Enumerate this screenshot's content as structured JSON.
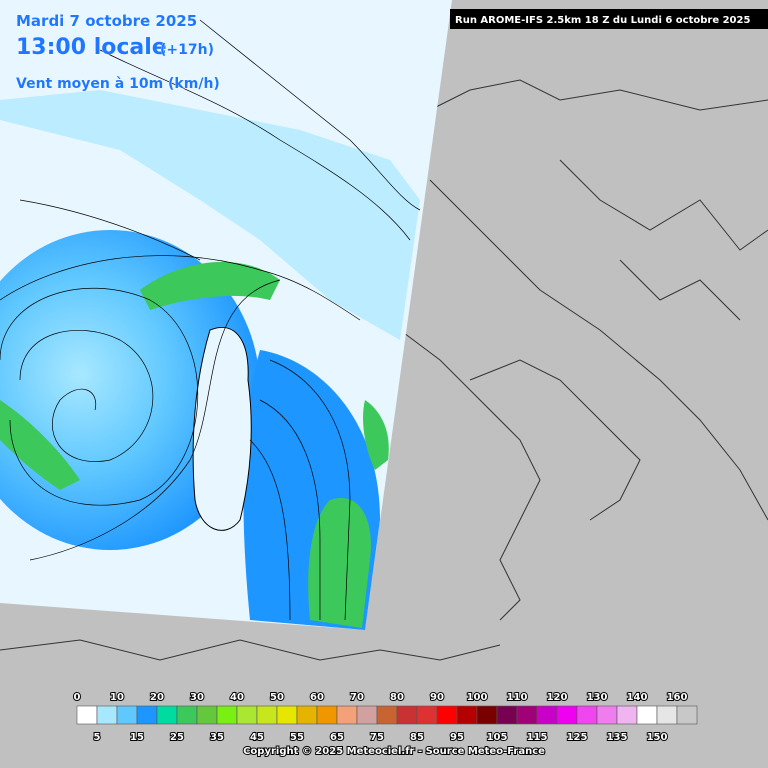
{
  "header": {
    "date": "Mardi 7 octobre 2025",
    "time": "13:00 locale",
    "offset": "(+17h)",
    "variable": "Vent moyen à 10m (km/h)",
    "run": "Run AROME-IFS 2.5km 18 Z du Lundi 6 octobre 2025"
  },
  "legend": {
    "top_labels": [
      0,
      10,
      20,
      30,
      40,
      50,
      60,
      70,
      80,
      90,
      100,
      110,
      120,
      130,
      140,
      160
    ],
    "bottom_labels": [
      5,
      15,
      25,
      35,
      45,
      55,
      65,
      75,
      85,
      95,
      105,
      115,
      125,
      135,
      150
    ],
    "colors": [
      "#ffffff",
      "#a8e8ff",
      "#60c8ff",
      "#1e96ff",
      "#00dca0",
      "#3cc85a",
      "#64c83c",
      "#78f014",
      "#aae632",
      "#c8e61e",
      "#e6e600",
      "#e6b400",
      "#f09600",
      "#f5a078",
      "#d2a0a0",
      "#c86432",
      "#c83232",
      "#dc3232",
      "#ff0000",
      "#b40000",
      "#780000",
      "#780050",
      "#a00078",
      "#c800c8",
      "#f000f0",
      "#f046f0",
      "#f07df0",
      "#f0b4f0",
      "#ffffff",
      "#e6e6e6",
      "#c8c8c8"
    ]
  },
  "footer": {
    "copyright": "Copyright © 2025 Meteociel.fr - Source Meteo-France"
  }
}
